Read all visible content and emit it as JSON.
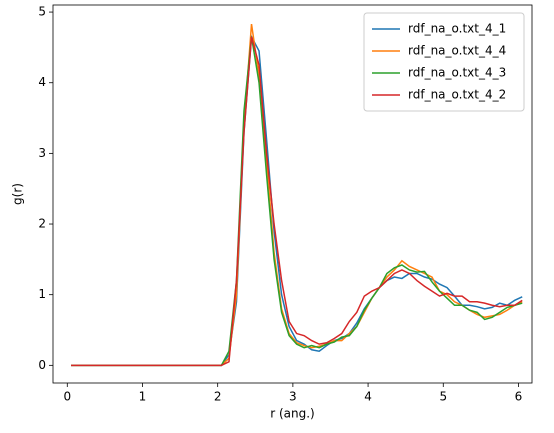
{
  "chart_data": {
    "type": "line",
    "xlabel": "r (ang.)",
    "ylabel": "g(r)",
    "x": [
      0.05,
      0.15,
      0.25,
      0.35,
      0.45,
      0.55,
      0.65,
      0.75,
      0.85,
      0.95,
      1.05,
      1.15,
      1.25,
      1.35,
      1.45,
      1.55,
      1.65,
      1.75,
      1.85,
      1.95,
      2.05,
      2.15,
      2.25,
      2.35,
      2.45,
      2.55,
      2.65,
      2.75,
      2.85,
      2.95,
      3.05,
      3.15,
      3.25,
      3.35,
      3.45,
      3.55,
      3.65,
      3.75,
      3.85,
      3.95,
      4.05,
      4.15,
      4.25,
      4.35,
      4.45,
      4.55,
      4.65,
      4.75,
      4.85,
      4.95,
      5.05,
      5.15,
      5.25,
      5.35,
      5.45,
      5.55,
      5.65,
      5.75,
      5.85,
      5.95,
      6.05
    ],
    "series": [
      {
        "name": "rdf_na_o.txt_4_1",
        "color": "#1f77b4",
        "values": [
          0,
          0,
          0,
          0,
          0,
          0,
          0,
          0,
          0,
          0,
          0,
          0,
          0,
          0,
          0,
          0,
          0,
          0,
          0,
          0,
          0,
          0.15,
          0.9,
          3.3,
          4.65,
          4.45,
          3.2,
          1.9,
          1.0,
          0.55,
          0.35,
          0.3,
          0.22,
          0.2,
          0.28,
          0.35,
          0.38,
          0.45,
          0.6,
          0.8,
          0.95,
          1.1,
          1.2,
          1.25,
          1.23,
          1.3,
          1.3,
          1.25,
          1.22,
          1.15,
          1.1,
          0.98,
          0.85,
          0.85,
          0.83,
          0.8,
          0.82,
          0.88,
          0.85,
          0.92,
          0.97
        ]
      },
      {
        "name": "rdf_na_o.txt_4_4",
        "color": "#ff7f0e",
        "values": [
          0,
          0,
          0,
          0,
          0,
          0,
          0,
          0,
          0,
          0,
          0,
          0,
          0,
          0,
          0,
          0,
          0,
          0,
          0,
          0,
          0,
          0.1,
          1.0,
          3.4,
          4.83,
          4.1,
          2.9,
          1.6,
          0.8,
          0.45,
          0.32,
          0.28,
          0.25,
          0.27,
          0.3,
          0.35,
          0.35,
          0.45,
          0.55,
          0.75,
          0.95,
          1.1,
          1.25,
          1.35,
          1.48,
          1.4,
          1.35,
          1.3,
          1.25,
          1.05,
          1.0,
          0.9,
          0.85,
          0.78,
          0.72,
          0.68,
          0.7,
          0.72,
          0.78,
          0.85,
          0.9
        ]
      },
      {
        "name": "rdf_na_o.txt_4_3",
        "color": "#2ca02c",
        "values": [
          0,
          0,
          0,
          0,
          0,
          0,
          0,
          0,
          0,
          0,
          0,
          0,
          0,
          0,
          0,
          0,
          0,
          0,
          0,
          0,
          0,
          0.2,
          1.2,
          3.6,
          4.65,
          4.0,
          2.7,
          1.5,
          0.75,
          0.42,
          0.3,
          0.25,
          0.28,
          0.25,
          0.3,
          0.33,
          0.4,
          0.42,
          0.55,
          0.78,
          0.95,
          1.1,
          1.3,
          1.38,
          1.42,
          1.35,
          1.32,
          1.33,
          1.18,
          1.05,
          0.95,
          0.85,
          0.85,
          0.78,
          0.75,
          0.65,
          0.68,
          0.75,
          0.82,
          0.85,
          0.88
        ]
      },
      {
        "name": "rdf_na_o.txt_4_2",
        "color": "#d62728",
        "values": [
          0,
          0,
          0,
          0,
          0,
          0,
          0,
          0,
          0,
          0,
          0,
          0,
          0,
          0,
          0,
          0,
          0,
          0,
          0,
          0,
          0,
          0.05,
          1.2,
          3.3,
          4.65,
          4.25,
          3.0,
          2.0,
          1.2,
          0.62,
          0.45,
          0.42,
          0.35,
          0.3,
          0.32,
          0.38,
          0.45,
          0.62,
          0.75,
          0.98,
          1.05,
          1.1,
          1.2,
          1.3,
          1.35,
          1.3,
          1.2,
          1.12,
          1.05,
          0.98,
          1.02,
          0.98,
          0.98,
          0.9,
          0.9,
          0.88,
          0.85,
          0.83,
          0.85,
          0.85,
          0.92
        ]
      }
    ],
    "xlim": [
      -0.19,
      6.18
    ],
    "xticks": [
      0,
      1,
      2,
      3,
      4,
      5,
      6
    ],
    "ylim": [
      -0.25,
      5.1
    ],
    "yticks": [
      0,
      1,
      2,
      3,
      4,
      5
    ],
    "legend": "upper right",
    "grid": false
  }
}
